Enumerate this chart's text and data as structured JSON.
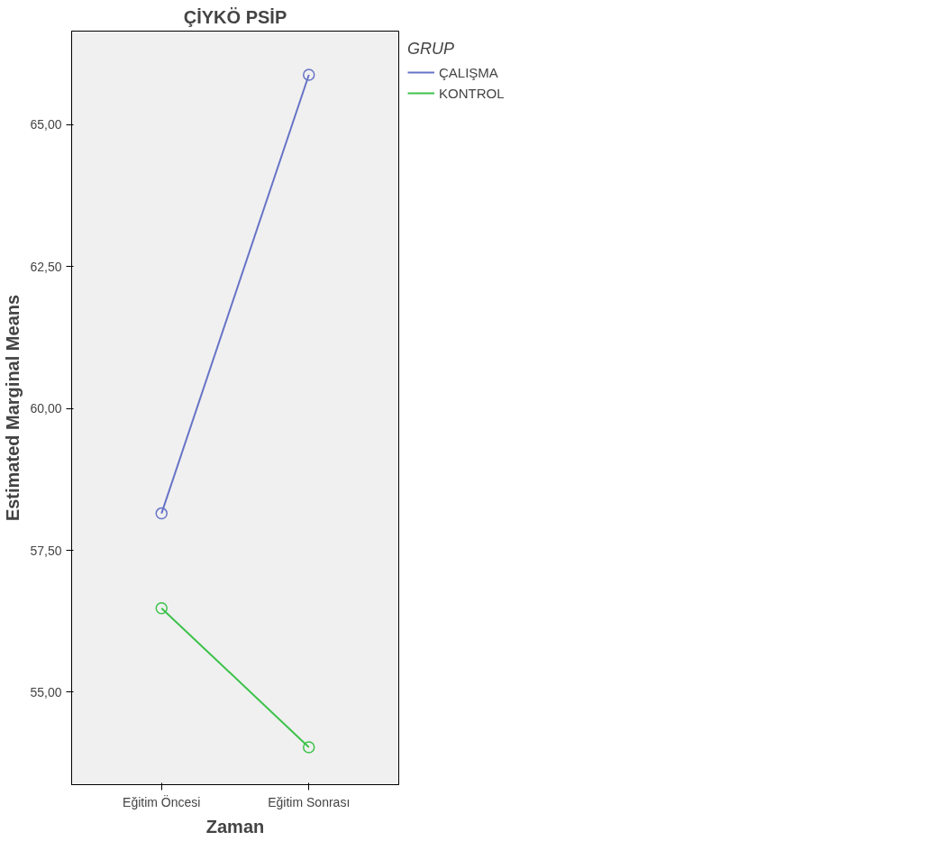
{
  "chart_data": {
    "type": "line",
    "title": "ÇİYKÖ PSİP",
    "xlabel": "Zaman",
    "ylabel": "Estimated Marginal Means",
    "legend_title": "GRUP",
    "categories": [
      "Eğitim Öncesi",
      "Eğitim Sonrası"
    ],
    "series": [
      {
        "name": "ÇALIŞMA",
        "color": "#6673c6",
        "values": [
          58.15,
          65.88
        ]
      },
      {
        "name": "KONTROL",
        "color": "#3cc24a",
        "values": [
          56.48,
          54.03
        ]
      }
    ],
    "ylim": [
      53.37,
      66.65
    ],
    "yticks": [
      {
        "value": 55,
        "label": "55,00"
      },
      {
        "value": 57.5,
        "label": "57,50"
      },
      {
        "value": 60,
        "label": "60,00"
      },
      {
        "value": 62.5,
        "label": "62,50"
      },
      {
        "value": 65,
        "label": "65,00"
      }
    ],
    "grid": false,
    "legend": "top right",
    "marker": "circle",
    "line_style": "solid"
  }
}
